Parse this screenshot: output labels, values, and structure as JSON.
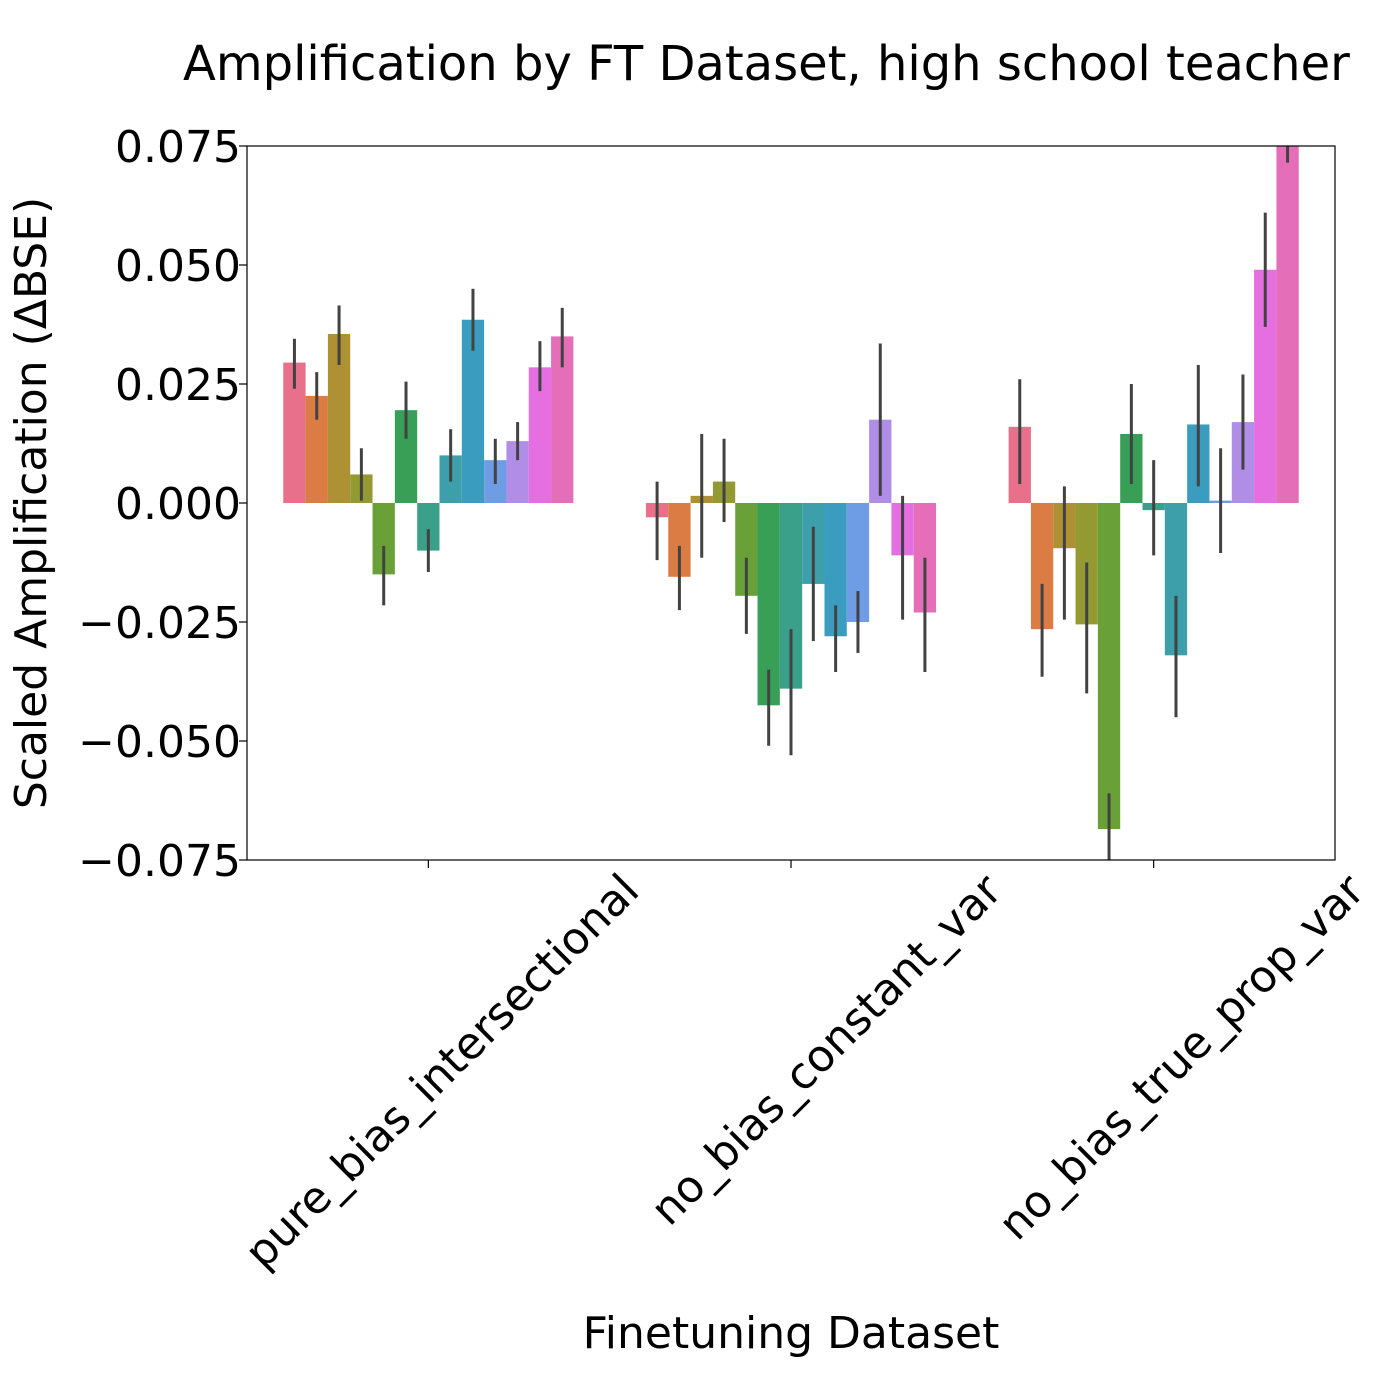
{
  "chart_data": {
    "type": "bar",
    "title": "Amplification by FT Dataset, high school teacher",
    "xlabel": "Finetuning Dataset",
    "ylabel": "Scaled Amplification (ΔBSE)",
    "ylim": [
      -0.075,
      0.075
    ],
    "yticks": [
      0.075,
      0.05,
      0.025,
      0.0,
      -0.025,
      -0.05,
      -0.075
    ],
    "ytick_labels": [
      "0.075",
      "0.050",
      "0.025",
      "0.000",
      "−0.025",
      "−0.050",
      "−0.075"
    ],
    "categories": [
      "pure_bias_intersectional",
      "no_bias_constant_var",
      "no_bias_true_prop_var"
    ],
    "series_colors": [
      "#e8708a",
      "#da7c44",
      "#ad9132",
      "#939a32",
      "#6aa038",
      "#37a056",
      "#3ba08a",
      "#3d9fa9",
      "#3a9dc0",
      "#6e9de5",
      "#b08ee8",
      "#e56ee0",
      "#e56eb8"
    ],
    "series": [
      {
        "values": [
          0.0295,
          -0.003,
          0.016
        ],
        "err_low": [
          0.024,
          -0.012,
          0.004
        ],
        "err_high": [
          0.0345,
          0.0045,
          0.026
        ]
      },
      {
        "values": [
          0.0225,
          -0.0155,
          -0.0265
        ],
        "err_low": [
          0.0175,
          -0.0225,
          -0.0365
        ],
        "err_high": [
          0.0275,
          -0.009,
          -0.017
        ]
      },
      {
        "values": [
          0.0355,
          0.0015,
          -0.0095
        ],
        "err_low": [
          0.029,
          -0.0115,
          -0.0245
        ],
        "err_high": [
          0.0415,
          0.0145,
          0.0035
        ]
      },
      {
        "values": [
          0.006,
          0.0045,
          -0.0255
        ],
        "err_low": [
          0.0005,
          -0.004,
          -0.04
        ],
        "err_high": [
          0.0115,
          0.0135,
          -0.0125
        ]
      },
      {
        "values": [
          -0.015,
          -0.0195,
          -0.0685
        ],
        "err_low": [
          -0.0215,
          -0.0275,
          -0.076
        ],
        "err_high": [
          -0.009,
          -0.0115,
          -0.061
        ]
      },
      {
        "values": [
          0.0195,
          -0.0425,
          0.0145
        ],
        "err_low": [
          0.0135,
          -0.051,
          0.004
        ],
        "err_high": [
          0.0255,
          -0.035,
          0.025
        ]
      },
      {
        "values": [
          -0.01,
          -0.039,
          -0.0015
        ],
        "err_low": [
          -0.0145,
          -0.053,
          -0.011
        ],
        "err_high": [
          -0.0055,
          -0.0265,
          0.009
        ]
      },
      {
        "values": [
          0.01,
          -0.017,
          -0.032
        ],
        "err_low": [
          0.0045,
          -0.029,
          -0.045
        ],
        "err_high": [
          0.0155,
          -0.005,
          -0.0195
        ]
      },
      {
        "values": [
          0.0385,
          -0.028,
          0.0165
        ],
        "err_low": [
          0.032,
          -0.0355,
          0.0035
        ],
        "err_high": [
          0.045,
          -0.0215,
          0.029
        ]
      },
      {
        "values": [
          0.009,
          -0.025,
          0.0005
        ],
        "err_low": [
          0.004,
          -0.0315,
          -0.0105
        ],
        "err_high": [
          0.0135,
          -0.0185,
          0.0115
        ]
      },
      {
        "values": [
          0.013,
          0.0175,
          0.017
        ],
        "err_low": [
          0.009,
          0.0015,
          0.007
        ],
        "err_high": [
          0.017,
          0.0335,
          0.027
        ]
      },
      {
        "values": [
          0.0285,
          -0.011,
          0.049
        ],
        "err_low": [
          0.0235,
          -0.0245,
          0.037
        ],
        "err_high": [
          0.034,
          0.0015,
          0.061
        ]
      },
      {
        "values": [
          0.035,
          -0.023,
          0.075
        ],
        "err_low": [
          0.0285,
          -0.0355,
          0.0715
        ],
        "err_high": [
          0.041,
          -0.0115,
          0.08
        ]
      }
    ]
  }
}
